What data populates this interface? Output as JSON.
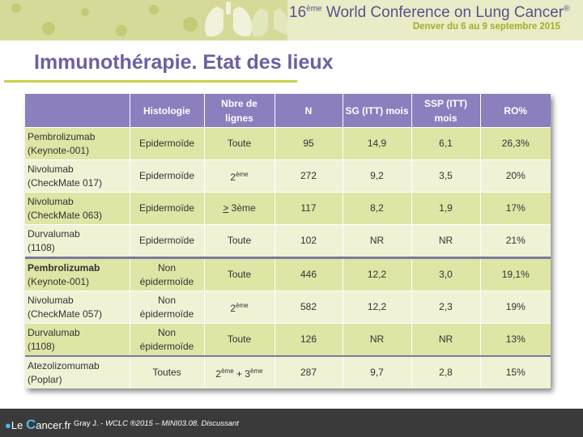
{
  "header": {
    "conference_prefix": "16",
    "conference_sup": "ème",
    "conference_title": " World Conference on Lung Cancer",
    "conference_reg": "®",
    "subtitle": "Denver du 6 au 9 septembre 2015"
  },
  "title": "Immunothérapie. Etat des lieux",
  "table": {
    "headers": [
      "",
      "Histologie",
      "Nbre de lignes",
      "N",
      "SG (ITT) mois",
      "SSP (ITT) mois",
      "RO%"
    ],
    "rows": [
      {
        "drug": "Pembrolizumab",
        "study": "(Keynote-001)",
        "histo": "Epidermoïde",
        "lines": "Toute",
        "n": "95",
        "sg": "14,9",
        "ssp": "6,1",
        "ro": "26,3%"
      },
      {
        "drug": "Nivolumab",
        "study": "(CheckMate 017)",
        "histo": "Epidermoïde",
        "lines_num": "2",
        "lines_sup": "ème",
        "n": "272",
        "sg": "9,2",
        "ssp": "3,5",
        "ro": "20%"
      },
      {
        "drug": "Nivolumab",
        "study": "(CheckMate 063)",
        "histo": "Epidermoïde",
        "lines_ge": ">",
        "lines_rest": " 3ème",
        "n": "117",
        "sg": "8,2",
        "ssp": "1,9",
        "ro": "17%"
      },
      {
        "drug": "Durvalumab",
        "study": "(1108)",
        "histo": "Epidermoïde",
        "lines": "Toute",
        "n": "102",
        "sg": "NR",
        "ssp": "NR",
        "ro": "21%"
      },
      {
        "drug": "Pembrolizumab",
        "study": "(Keynote-001)",
        "histo_1": "Non",
        "histo_2": "épidermoïde",
        "lines": "Toute",
        "n": "446",
        "sg": "12,2",
        "ssp": "3,0",
        "ro": "19,1%"
      },
      {
        "drug": "Nivolumab",
        "study": "(CheckMate 057)",
        "histo_1": "Non",
        "histo_2": "épidermoïde",
        "lines_num": "2",
        "lines_sup": "ème",
        "n": "582",
        "sg": "12,2",
        "ssp": "2,3",
        "ro": "19%"
      },
      {
        "drug": "Durvalumab",
        "study": "(1108)",
        "histo_1": "Non",
        "histo_2": "épidermoïde",
        "lines": "Toute",
        "n": "126",
        "sg": "NR",
        "ssp": "NR",
        "ro": "13%"
      },
      {
        "drug": "Atezolizomumab",
        "study": "(Poplar)",
        "histo": "Toutes",
        "lines_a": "2",
        "lines_a_sup": "ème",
        "lines_plus": " + 3",
        "lines_b_sup": "ème",
        "n": "287",
        "sg": "9,7",
        "ssp": "2,8",
        "ro": "15%"
      }
    ]
  },
  "footer": {
    "logo_le": "Le ",
    "logo_c": "C",
    "logo_rest": "ancer",
    "logo_tld": ".fr",
    "citation_author": "Gray J. - ",
    "citation_rest": "WCLC ®2015 – MINI03.08. Discussant"
  },
  "colors": {
    "header_bg": "#e9ecc6",
    "title": "#6f5ea3",
    "table_header": "#8c7fbd",
    "row_dark": "#dfe5a5",
    "row_light": "#eff2d5",
    "footer_bg": "#3a3a3a"
  }
}
